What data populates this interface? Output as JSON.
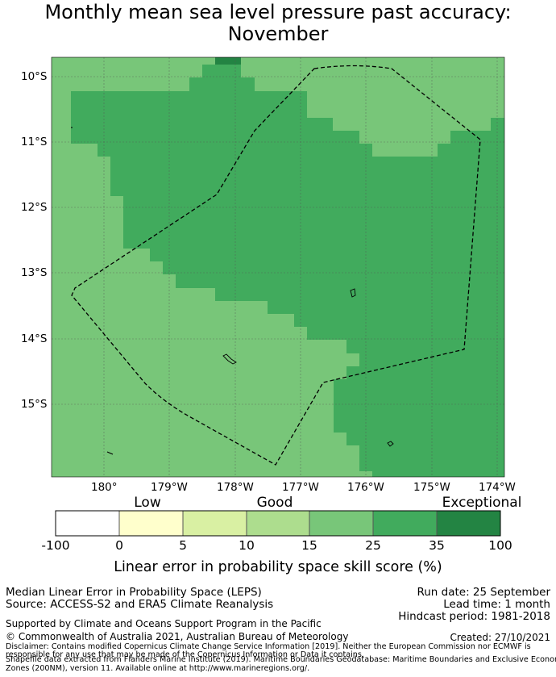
{
  "title": {
    "line1": "Monthly mean sea level pressure past accuracy:",
    "line2": "November"
  },
  "map": {
    "lat_labels": [
      "10°S",
      "11°S",
      "12°S",
      "13°S",
      "14°S",
      "15°S"
    ],
    "lon_labels": [
      "180°",
      "179°W",
      "178°W",
      "177°W",
      "176°W",
      "175°W",
      "174°W"
    ],
    "colors": {
      "c15_25": "#78c679",
      "c25_35": "#41ab5d",
      "c35_100": "#238443",
      "boundary": "#000000",
      "grid": "#555555"
    }
  },
  "colorbar": {
    "categories": [
      "Low",
      "Good",
      "Exceptional"
    ],
    "ticks": [
      "-100",
      "0",
      "5",
      "10",
      "15",
      "25",
      "35",
      "100"
    ],
    "colors": [
      "#ffffff",
      "#ffffcc",
      "#d9f0a3",
      "#addd8e",
      "#78c679",
      "#41ab5d",
      "#238443"
    ],
    "label": "Linear error in probability space skill score (%)"
  },
  "footer": {
    "method": "Median Linear Error in Probability Space (LEPS)",
    "source": "Source: ACCESS-S2 and ERA5 Climate Reanalysis",
    "run_date": "Run date: 25 September",
    "lead_time": "Lead time: 1 month",
    "hindcast": "Hindcast period: 1981-2018",
    "support": "Supported by Climate and Oceans Support Program in the Pacific",
    "copyright": "© Commonwealth of Australia 2021, Australian Bureau of Meteorology",
    "created": "Created: 27/10/2021",
    "disclaimer_1": "Disclaimer: Contains modified Copernicus Climate Change Service Information [2019]. Neither the European Commission nor ECMWF is",
    "disclaimer_2": "responsible for any use that may be made of the Copernicus Information or Data it contains.",
    "disclaimer_3": "Shapefile data extracted from Flanders Marine Institute (2019). Maritime Boundaries Geodatabase: Maritime Boundaries and Exclusive Economic",
    "disclaimer_4": "Zones (200NM), version 11. Available online at http://www.marineregions.org/."
  }
}
